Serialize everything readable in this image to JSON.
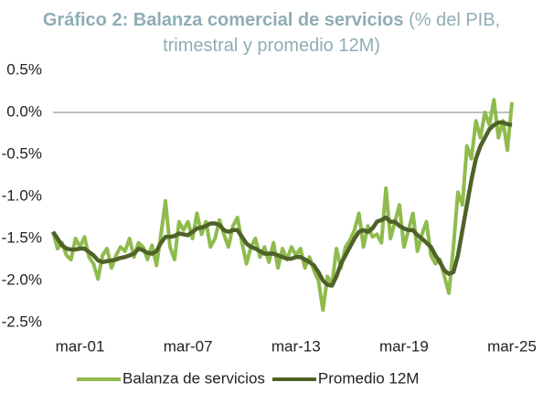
{
  "chart_data": {
    "type": "line",
    "title": "Gráfico 2: Balanza comercial de servicios",
    "subtitle": "(% del PIB, trimestral y promedio 12M)",
    "categories": [
      null,
      null,
      null,
      null,
      null,
      null,
      "mar-01",
      null,
      null,
      null,
      null,
      null,
      null,
      null,
      null,
      null,
      null,
      null,
      null,
      null,
      null,
      null,
      null,
      null,
      null,
      null,
      null,
      null,
      null,
      null,
      "mar-07",
      null,
      null,
      null,
      null,
      null,
      null,
      null,
      null,
      null,
      null,
      null,
      null,
      null,
      null,
      null,
      null,
      null,
      null,
      null,
      null,
      null,
      null,
      null,
      "mar-13",
      null,
      null,
      null,
      null,
      null,
      null,
      null,
      null,
      null,
      null,
      null,
      null,
      null,
      null,
      null,
      null,
      null,
      null,
      null,
      null,
      null,
      null,
      null,
      "mar-19",
      null,
      null,
      null,
      null,
      null,
      null,
      null,
      null,
      null,
      null,
      null,
      null,
      null,
      null,
      null,
      null,
      null,
      null,
      null,
      null,
      null,
      null,
      null,
      "mar-25"
    ],
    "series": [
      {
        "name": "Balanza de servicios",
        "color": "#8fbb4e",
        "values": [
          -1.42,
          -1.62,
          -1.55,
          -1.7,
          -1.75,
          -1.5,
          -1.6,
          -1.48,
          -1.72,
          -1.8,
          -1.98,
          -1.7,
          -1.62,
          -1.85,
          -1.7,
          -1.6,
          -1.65,
          -1.5,
          -1.72,
          -1.55,
          -1.6,
          -1.75,
          -1.58,
          -1.82,
          -1.45,
          -1.05,
          -1.6,
          -1.75,
          -1.3,
          -1.4,
          -1.3,
          -1.5,
          -1.2,
          -1.45,
          -1.3,
          -1.6,
          -1.5,
          -1.28,
          -1.45,
          -1.6,
          -1.35,
          -1.25,
          -1.55,
          -1.8,
          -1.6,
          -1.5,
          -1.72,
          -1.6,
          -1.78,
          -1.55,
          -1.85,
          -1.62,
          -1.75,
          -1.6,
          -1.7,
          -1.62,
          -1.85,
          -1.72,
          -1.88,
          -2.0,
          -2.35,
          -1.95,
          -2.05,
          -1.62,
          -1.85,
          -1.6,
          -1.52,
          -1.4,
          -1.2,
          -1.6,
          -1.35,
          -1.48,
          -1.45,
          -1.55,
          -0.9,
          -1.5,
          -1.3,
          -1.1,
          -1.6,
          -1.4,
          -1.2,
          -1.65,
          -1.45,
          -1.3,
          -1.7,
          -1.8,
          -1.75,
          -1.95,
          -2.15,
          -1.6,
          -0.95,
          -1.1,
          -0.4,
          -0.55,
          -0.1,
          -0.3,
          0.0,
          -0.15,
          0.15,
          -0.3,
          -0.1,
          -0.45,
          0.12
        ]
      },
      {
        "name": "Promedio 12M",
        "color": "#4f6228",
        "values": [
          -1.42,
          -1.5,
          -1.58,
          -1.62,
          -1.63,
          -1.63,
          -1.62,
          -1.62,
          -1.66,
          -1.7,
          -1.76,
          -1.78,
          -1.77,
          -1.76,
          -1.75,
          -1.73,
          -1.72,
          -1.7,
          -1.68,
          -1.62,
          -1.64,
          -1.67,
          -1.68,
          -1.65,
          -1.55,
          -1.48,
          -1.48,
          -1.47,
          -1.44,
          -1.45,
          -1.46,
          -1.42,
          -1.38,
          -1.37,
          -1.35,
          -1.32,
          -1.32,
          -1.34,
          -1.4,
          -1.42,
          -1.4,
          -1.4,
          -1.48,
          -1.56,
          -1.6,
          -1.62,
          -1.65,
          -1.68,
          -1.68,
          -1.68,
          -1.7,
          -1.72,
          -1.74,
          -1.74,
          -1.72,
          -1.72,
          -1.75,
          -1.78,
          -1.82,
          -1.9,
          -2.0,
          -2.05,
          -2.06,
          -1.95,
          -1.8,
          -1.7,
          -1.6,
          -1.5,
          -1.42,
          -1.4,
          -1.42,
          -1.38,
          -1.3,
          -1.28,
          -1.25,
          -1.3,
          -1.3,
          -1.35,
          -1.38,
          -1.4,
          -1.4,
          -1.46,
          -1.5,
          -1.55,
          -1.6,
          -1.7,
          -1.78,
          -1.88,
          -1.92,
          -1.9,
          -1.7,
          -1.4,
          -1.1,
          -0.8,
          -0.55,
          -0.4,
          -0.3,
          -0.2,
          -0.15,
          -0.12,
          -0.12,
          -0.14,
          -0.15
        ]
      }
    ],
    "ylim": [
      -2.5,
      0.5
    ],
    "yticks": [
      {
        "value": 0.5,
        "label": "0.5%"
      },
      {
        "value": 0.0,
        "label": "0.0%"
      },
      {
        "value": -0.5,
        "label": "-0.5%"
      },
      {
        "value": -1.0,
        "label": "-1.0%"
      },
      {
        "value": -1.5,
        "label": "-1.5%"
      },
      {
        "value": -2.0,
        "label": "-2.0%"
      },
      {
        "value": -2.5,
        "label": "-2.5%"
      }
    ],
    "legend": "bottom"
  }
}
